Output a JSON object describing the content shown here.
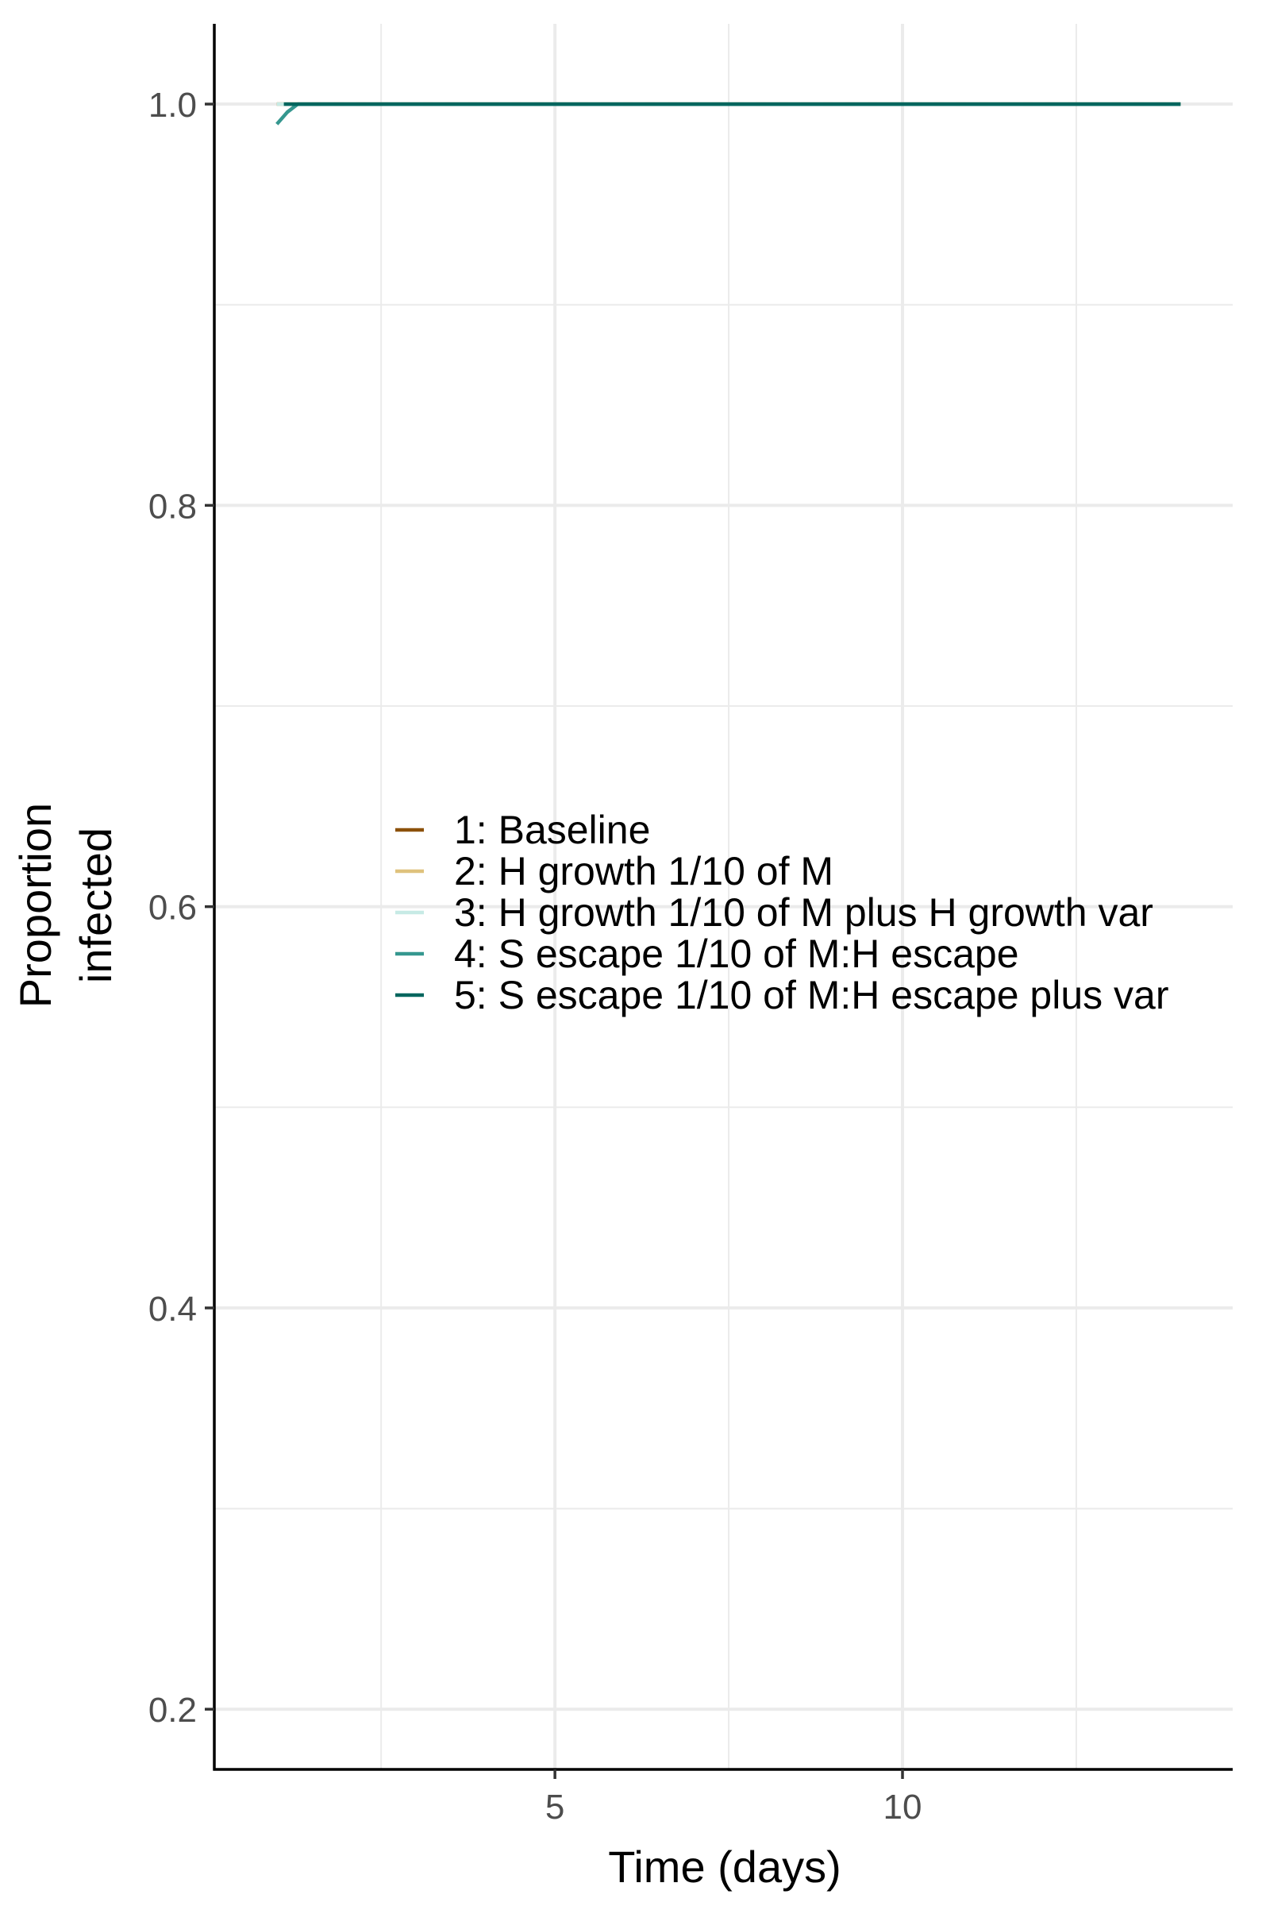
{
  "chart_data": {
    "type": "line",
    "title": "",
    "xlabel": "Time (days)",
    "ylabel_lines": [
      "Proportion",
      "infected"
    ],
    "xlim": [
      0.1,
      14.75
    ],
    "ylim": [
      0.17,
      1.04
    ],
    "x_ticks": [
      5,
      10
    ],
    "x_tick_labels": [
      "5",
      "10"
    ],
    "x_minor_grid": [
      2.5,
      7.5,
      12.5
    ],
    "y_ticks": [
      0.2,
      0.4,
      0.6,
      0.8,
      1.0
    ],
    "y_tick_labels": [
      "0.2",
      "0.4",
      "0.6",
      "0.8",
      "1.0"
    ],
    "y_minor_grid": [
      0.3,
      0.5,
      0.7,
      0.9
    ],
    "grid": true,
    "legend_position": "center",
    "series": [
      {
        "name": "1: Baseline",
        "color": "#8c510a",
        "dash": false,
        "x": [
          1,
          1.2,
          2,
          4,
          6,
          8,
          10,
          12,
          14
        ],
        "y": [
          1.0,
          1.0,
          1.0,
          1.0,
          1.0,
          1.0,
          1.0,
          1.0,
          1.0
        ]
      },
      {
        "name": "2: H growth 1/10 of M",
        "color": "#dfc27d",
        "dash": false,
        "x": [
          1,
          1.2,
          2,
          4,
          6,
          8,
          10,
          12,
          14
        ],
        "y": [
          1.0,
          1.0,
          1.0,
          1.0,
          1.0,
          1.0,
          1.0,
          1.0,
          1.0
        ]
      },
      {
        "name": "3: H growth 1/10 of M plus H growth var",
        "color": "#c7eae5",
        "dash": true,
        "x": [
          1,
          1.2,
          2,
          4,
          6,
          8,
          10,
          12,
          14
        ],
        "y": [
          1.0,
          1.0,
          1.0,
          1.0,
          1.0,
          1.0,
          1.0,
          1.0,
          1.0
        ]
      },
      {
        "name": "4: S escape 1/10 of M:H escape",
        "color": "#35978f",
        "dash": false,
        "x": [
          1,
          1.15,
          1.3,
          2,
          4,
          6,
          8,
          10,
          12,
          14
        ],
        "y": [
          0.99,
          0.996,
          1.0,
          1.0,
          1.0,
          1.0,
          1.0,
          1.0,
          1.0,
          1.0
        ]
      },
      {
        "name": "5: S escape 1/10 of M:H escape plus var",
        "color": "#01665e",
        "dash": false,
        "x": [
          1.1,
          1.3,
          2,
          4,
          6,
          8,
          10,
          12,
          14
        ],
        "y": [
          1.0,
          1.0,
          1.0,
          1.0,
          1.0,
          1.0,
          1.0,
          1.0,
          1.0
        ]
      }
    ]
  }
}
